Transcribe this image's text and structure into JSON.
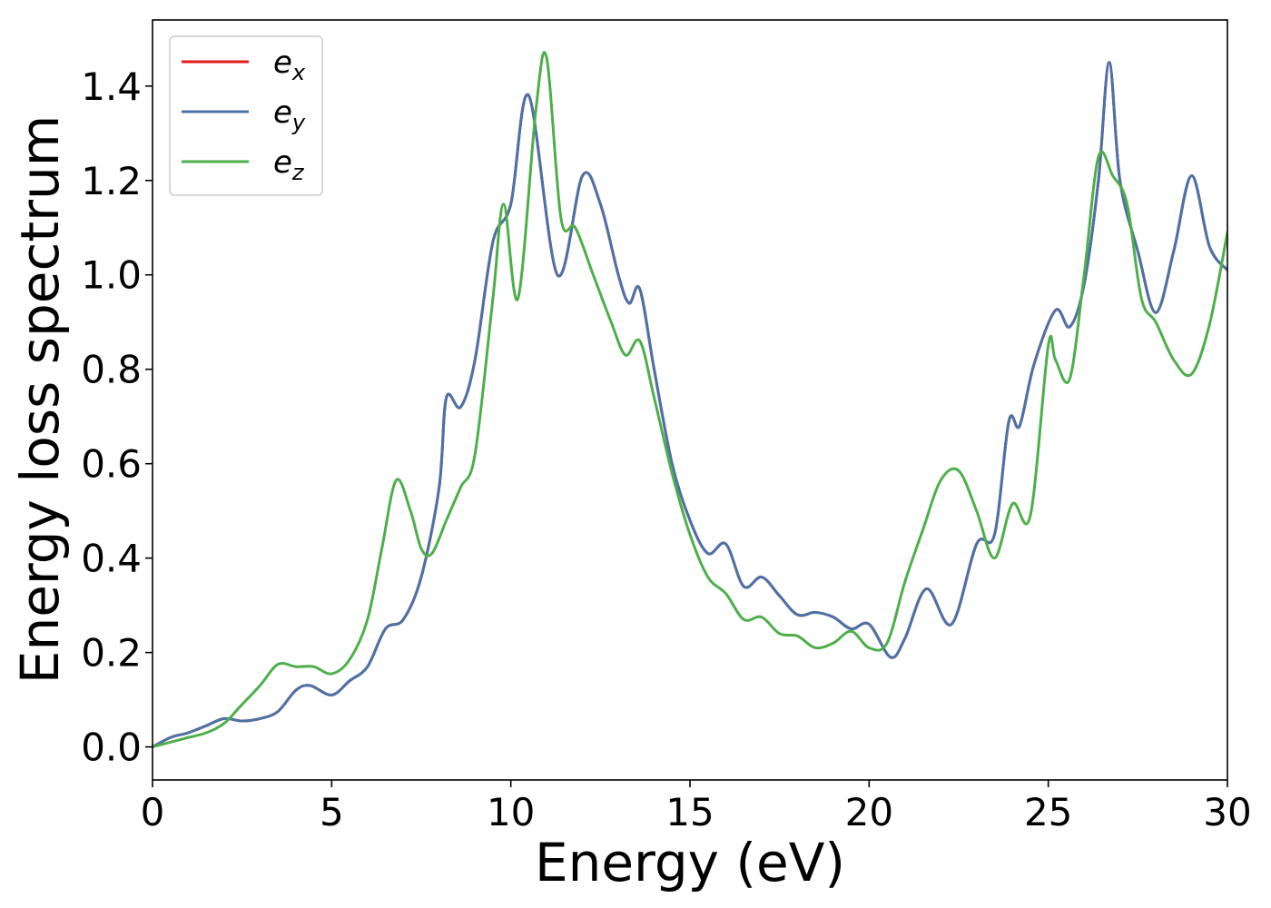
{
  "chart_data": {
    "type": "line",
    "title": "",
    "xlabel": "Energy (eV)",
    "ylabel": "Energy loss spectrum",
    "xlim": [
      0,
      30
    ],
    "ylim": [
      -0.07,
      1.54
    ],
    "xticks": [
      0,
      5,
      10,
      15,
      20,
      25,
      30
    ],
    "xtick_labels": [
      "0",
      "5",
      "10",
      "15",
      "20",
      "25",
      "30"
    ],
    "yticks": [
      0.0,
      0.2,
      0.4,
      0.6,
      0.8,
      1.0,
      1.2,
      1.4
    ],
    "ytick_labels": [
      "0.0",
      "0.2",
      "0.4",
      "0.6",
      "0.8",
      "1.0",
      "1.2",
      "1.4"
    ],
    "grid": false,
    "legend_position": "top-left",
    "series": [
      {
        "name": "e_x",
        "label_base": "e",
        "label_sub": "x",
        "color": "#e41a1c",
        "x": [
          0,
          0.5,
          1,
          1.5,
          2,
          2.5,
          3,
          3.5,
          4,
          4.4,
          5,
          5.5,
          6,
          6.5,
          7,
          7.5,
          8,
          8.2,
          8.6,
          9,
          9.5,
          10,
          10.5,
          11.3,
          12,
          12.5,
          13,
          13.3,
          13.6,
          14,
          14.5,
          15,
          15.5,
          16,
          16.5,
          17,
          17.5,
          18,
          18.5,
          19,
          19.5,
          20,
          20.6,
          21,
          21.6,
          22.3,
          23,
          23.5,
          23.9,
          24.2,
          24.6,
          25.2,
          25.6,
          26,
          26.4,
          26.7,
          27,
          27.5,
          28,
          28.5,
          29,
          29.5,
          30
        ],
        "values": [
          0.0,
          0.02,
          0.03,
          0.045,
          0.06,
          0.055,
          0.06,
          0.075,
          0.12,
          0.13,
          0.11,
          0.14,
          0.17,
          0.25,
          0.27,
          0.36,
          0.55,
          0.74,
          0.72,
          0.82,
          1.07,
          1.15,
          1.38,
          1.0,
          1.21,
          1.15,
          1.0,
          0.94,
          0.97,
          0.8,
          0.6,
          0.48,
          0.41,
          0.43,
          0.34,
          0.36,
          0.32,
          0.28,
          0.285,
          0.275,
          0.25,
          0.26,
          0.19,
          0.23,
          0.335,
          0.26,
          0.43,
          0.45,
          0.69,
          0.68,
          0.81,
          0.925,
          0.89,
          0.98,
          1.2,
          1.45,
          1.2,
          1.05,
          0.92,
          1.05,
          1.21,
          1.06,
          1.01
        ]
      },
      {
        "name": "e_y",
        "label_base": "e",
        "label_sub": "y",
        "color": "#4a73a8",
        "x": [
          0,
          0.5,
          1,
          1.5,
          2,
          2.5,
          3,
          3.5,
          4,
          4.4,
          5,
          5.5,
          6,
          6.5,
          7,
          7.5,
          8,
          8.2,
          8.6,
          9,
          9.5,
          10,
          10.5,
          11.3,
          12,
          12.5,
          13,
          13.3,
          13.6,
          14,
          14.5,
          15,
          15.5,
          16,
          16.5,
          17,
          17.5,
          18,
          18.5,
          19,
          19.5,
          20,
          20.6,
          21,
          21.6,
          22.3,
          23,
          23.5,
          23.9,
          24.2,
          24.6,
          25.2,
          25.6,
          26,
          26.4,
          26.7,
          27,
          27.5,
          28,
          28.5,
          29,
          29.5,
          30
        ],
        "values": [
          0.0,
          0.02,
          0.03,
          0.045,
          0.06,
          0.055,
          0.06,
          0.075,
          0.12,
          0.13,
          0.11,
          0.14,
          0.17,
          0.25,
          0.27,
          0.36,
          0.55,
          0.74,
          0.72,
          0.82,
          1.07,
          1.15,
          1.38,
          1.0,
          1.21,
          1.15,
          1.0,
          0.94,
          0.97,
          0.8,
          0.6,
          0.48,
          0.41,
          0.43,
          0.34,
          0.36,
          0.32,
          0.28,
          0.285,
          0.275,
          0.25,
          0.26,
          0.19,
          0.23,
          0.335,
          0.26,
          0.43,
          0.45,
          0.69,
          0.68,
          0.81,
          0.925,
          0.89,
          0.98,
          1.2,
          1.45,
          1.2,
          1.05,
          0.92,
          1.05,
          1.21,
          1.06,
          1.01
        ]
      },
      {
        "name": "e_z",
        "label_base": "e",
        "label_sub": "z",
        "color": "#4daf4a",
        "x": [
          0,
          0.5,
          1,
          1.5,
          2,
          2.5,
          3,
          3.5,
          4,
          4.5,
          5,
          5.5,
          6,
          6.4,
          6.8,
          7.2,
          7.5,
          7.8,
          8.2,
          8.6,
          9,
          9.5,
          9.8,
          10.2,
          10.7,
          11,
          11.4,
          11.8,
          12.3,
          12.8,
          13.2,
          13.6,
          14,
          14.5,
          15,
          15.5,
          16,
          16.5,
          17,
          17.5,
          18,
          18.5,
          19,
          19.5,
          20,
          20.5,
          21,
          21.5,
          22,
          22.5,
          23,
          23.5,
          24,
          24.5,
          25,
          25.2,
          25.6,
          26,
          26.4,
          26.8,
          27.2,
          27.6,
          28,
          28.5,
          29,
          29.5,
          30
        ],
        "values": [
          0.0,
          0.01,
          0.02,
          0.03,
          0.05,
          0.09,
          0.13,
          0.175,
          0.17,
          0.17,
          0.155,
          0.185,
          0.27,
          0.42,
          0.565,
          0.5,
          0.42,
          0.41,
          0.48,
          0.55,
          0.62,
          0.95,
          1.15,
          0.95,
          1.35,
          1.46,
          1.12,
          1.1,
          1.0,
          0.9,
          0.83,
          0.86,
          0.74,
          0.58,
          0.45,
          0.36,
          0.325,
          0.27,
          0.275,
          0.24,
          0.235,
          0.21,
          0.22,
          0.245,
          0.21,
          0.22,
          0.35,
          0.46,
          0.565,
          0.585,
          0.5,
          0.4,
          0.515,
          0.49,
          0.85,
          0.82,
          0.78,
          1.0,
          1.25,
          1.21,
          1.15,
          0.95,
          0.9,
          0.82,
          0.79,
          0.895,
          1.09
        ]
      }
    ]
  }
}
